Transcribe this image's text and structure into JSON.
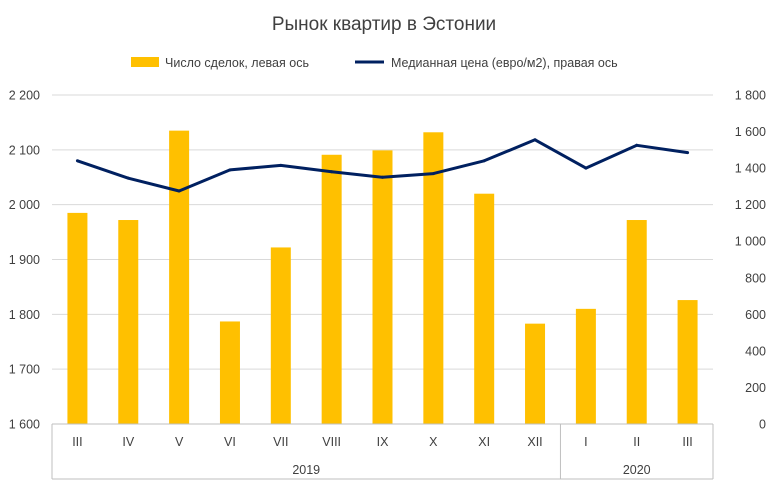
{
  "chart_data": {
    "type": "bar",
    "title": "Рынок квартир в Эстонии",
    "categories": [
      "III",
      "IV",
      "V",
      "VI",
      "VII",
      "VIII",
      "IX",
      "X",
      "XI",
      "XII",
      "I",
      "II",
      "III"
    ],
    "years": [
      {
        "label": "2019",
        "from": 0,
        "to": 9
      },
      {
        "label": "2020",
        "from": 10,
        "to": 12
      }
    ],
    "series": [
      {
        "name": "Число сделок, левая ось",
        "type": "bar",
        "axis": "left",
        "color": "#FFC000",
        "values": [
          1985,
          1972,
          2135,
          1787,
          1922,
          2091,
          2099,
          2132,
          2020,
          1783,
          1810,
          1972,
          1826
        ]
      },
      {
        "name": "Медианная цена (евро/м2), правая ось",
        "type": "line",
        "axis": "right",
        "color": "#002060",
        "values": [
          1440,
          1345,
          1275,
          1390,
          1415,
          1380,
          1350,
          1370,
          1440,
          1555,
          1400,
          1525,
          1485
        ]
      }
    ],
    "y_left": {
      "min": 1600,
      "max": 2200,
      "step": 100,
      "tick_labels": [
        "1 600",
        "1 700",
        "1 800",
        "1 900",
        "2 000",
        "2 100",
        "2 200"
      ]
    },
    "y_right": {
      "min": 0,
      "max": 1800,
      "step": 200,
      "tick_labels": [
        "0",
        "200",
        "400",
        "600",
        "800",
        "1 000",
        "1 200",
        "1 400",
        "1 600",
        "1 800"
      ]
    },
    "grid": true,
    "legend_position": "top"
  }
}
